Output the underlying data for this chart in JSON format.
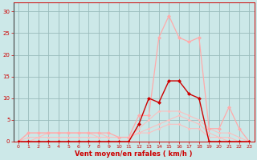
{
  "x": [
    0,
    1,
    2,
    3,
    4,
    5,
    6,
    7,
    8,
    9,
    10,
    11,
    12,
    13,
    14,
    15,
    16,
    17,
    18,
    19,
    20,
    21,
    22,
    23
  ],
  "vent_moyen": [
    0,
    0,
    0,
    0,
    0,
    0,
    0,
    0,
    0,
    0,
    0,
    0,
    4,
    10,
    9,
    14,
    14,
    11,
    10,
    0,
    0,
    0,
    0,
    0
  ],
  "rafales": [
    0,
    2,
    2,
    2,
    2,
    2,
    2,
    2,
    2,
    2,
    1,
    1,
    6,
    6,
    24,
    29,
    24,
    23,
    24,
    3,
    3,
    8,
    3,
    0
  ],
  "line2": [
    0,
    2,
    2,
    2,
    2,
    2,
    2,
    2,
    2,
    1,
    1,
    1,
    3,
    5,
    7,
    7,
    7,
    6,
    5,
    3,
    2,
    2,
    1,
    0
  ],
  "line3": [
    0,
    1,
    1,
    2,
    2,
    2,
    2,
    2,
    1,
    1,
    1,
    1,
    2,
    3,
    4,
    5,
    6,
    5,
    4,
    2,
    1,
    1,
    0,
    0
  ],
  "line4": [
    0,
    0,
    1,
    1,
    1,
    1,
    1,
    1,
    1,
    1,
    1,
    1,
    2,
    2,
    3,
    4,
    4,
    3,
    3,
    1,
    1,
    0,
    0,
    0
  ],
  "vent_moyen_color": "#cc0000",
  "rafales_color": "#ffaaaa",
  "light_color": "#ffbbbb",
  "background_color": "#cce8e8",
  "grid_color": "#99bbbb",
  "axis_label_color": "#cc0000",
  "tick_color": "#cc0000",
  "xlabel": "Vent moyen/en rafales ( km/h )",
  "ylim": [
    0,
    32
  ],
  "xlim": [
    -0.5,
    23.5
  ],
  "yticks": [
    0,
    5,
    10,
    15,
    20,
    25,
    30
  ],
  "xticks": [
    0,
    1,
    2,
    3,
    4,
    5,
    6,
    7,
    8,
    9,
    10,
    11,
    12,
    13,
    14,
    15,
    16,
    17,
    18,
    19,
    20,
    21,
    22,
    23
  ]
}
